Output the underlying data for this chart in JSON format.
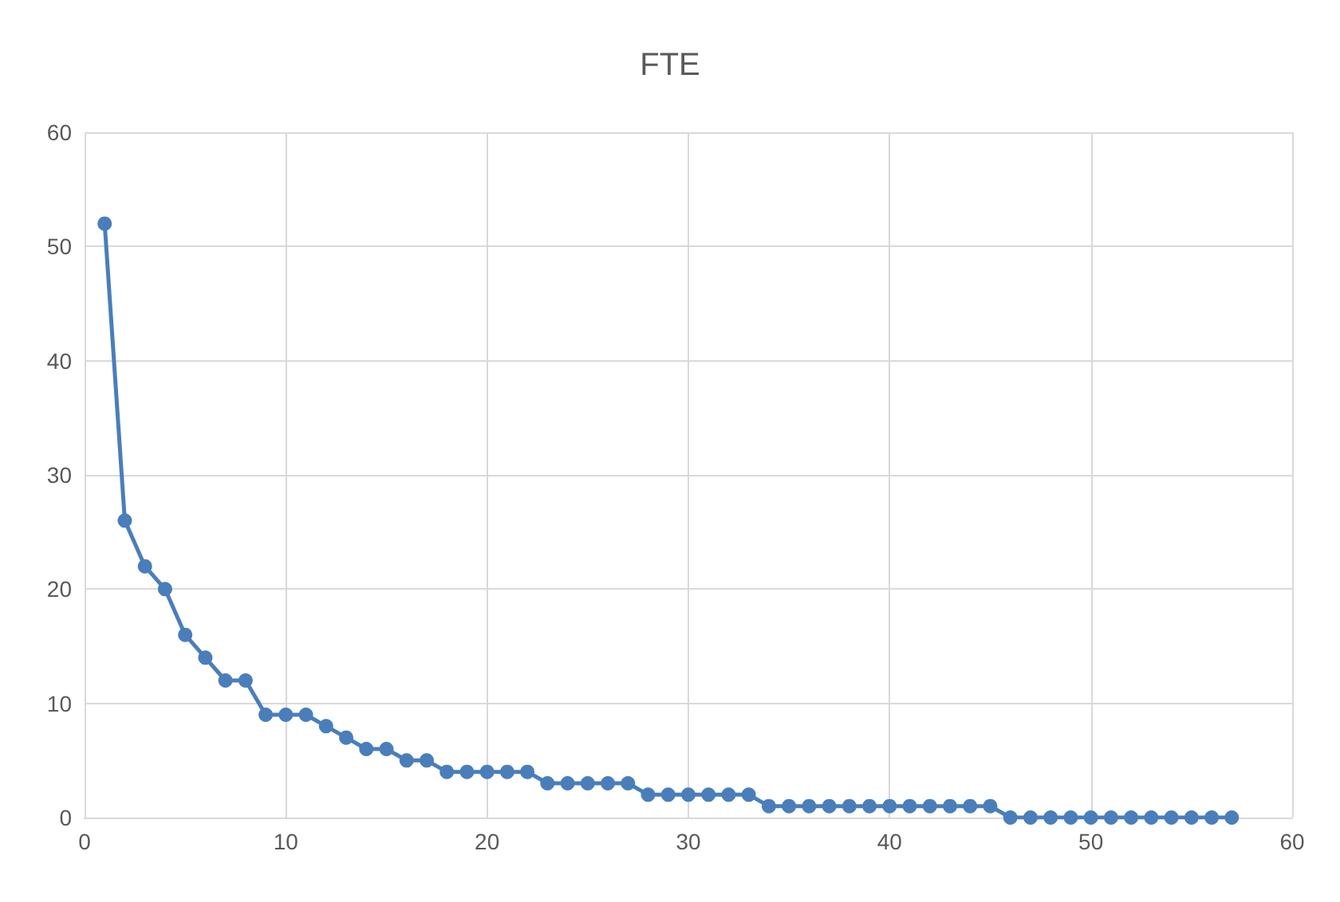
{
  "chart_data": {
    "type": "line",
    "title": "FTE",
    "x": [
      1,
      2,
      3,
      4,
      5,
      6,
      7,
      8,
      9,
      10,
      11,
      12,
      13,
      14,
      15,
      16,
      17,
      18,
      19,
      20,
      21,
      22,
      23,
      24,
      25,
      26,
      27,
      28,
      29,
      30,
      31,
      32,
      33,
      34,
      35,
      36,
      37,
      38,
      39,
      40,
      41,
      42,
      43,
      44,
      45,
      46,
      47,
      48,
      49,
      50,
      51,
      52,
      53,
      54,
      55,
      56,
      57
    ],
    "series": [
      {
        "color": "#4a7ebb",
        "values": [
          52,
          26,
          22,
          20,
          16,
          14,
          12,
          12,
          9,
          9,
          9,
          8,
          7,
          6,
          6,
          5,
          5,
          4,
          4,
          4,
          4,
          4,
          3,
          3,
          3,
          3,
          3,
          2,
          2,
          2,
          2,
          2,
          2,
          1,
          1,
          1,
          1,
          1,
          1,
          1,
          1,
          1,
          1,
          1,
          1,
          0,
          0,
          0,
          0,
          0,
          0,
          0,
          0,
          0,
          0,
          0,
          0
        ]
      }
    ],
    "xlim": [
      0,
      60
    ],
    "xticks": [
      0,
      10,
      20,
      30,
      40,
      50,
      60
    ],
    "ylim": [
      0,
      60
    ],
    "yticks": [
      0,
      10,
      20,
      30,
      40,
      50,
      60
    ],
    "grid": true,
    "marker": "circle",
    "line_style": "solid"
  }
}
